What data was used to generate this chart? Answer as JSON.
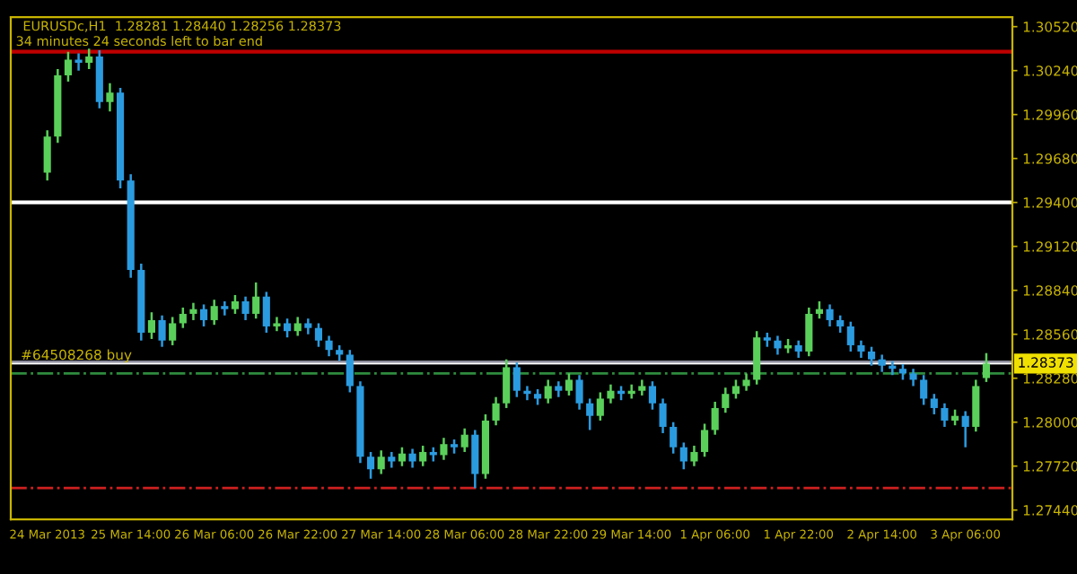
{
  "chart_data": {
    "type": "candlestick",
    "title": "EURUSDc,H1  1.28281 1.28440 1.28256 1.28373",
    "subtitle": "34 minutes 24 seconds left to bar end",
    "categories": [
      "24 Mar 2013",
      null,
      null,
      null,
      null,
      null,
      null,
      null,
      "25 Mar 14:00",
      null,
      null,
      null,
      null,
      null,
      null,
      null,
      "26 Mar 06:00",
      null,
      null,
      null,
      null,
      null,
      null,
      null,
      "26 Mar 22:00",
      null,
      null,
      null,
      null,
      null,
      null,
      null,
      "27 Mar 14:00",
      null,
      null,
      null,
      null,
      null,
      null,
      null,
      "28 Mar 06:00",
      null,
      null,
      null,
      null,
      null,
      null,
      null,
      "28 Mar 22:00",
      null,
      null,
      null,
      null,
      null,
      null,
      null,
      "29 Mar 14:00",
      null,
      null,
      null,
      null,
      null,
      null,
      null,
      "1 Apr 06:00",
      null,
      null,
      null,
      null,
      null,
      null,
      null,
      "1 Apr 22:00",
      null,
      null,
      null,
      null,
      null,
      null,
      null,
      "2 Apr 14:00",
      null,
      null,
      null,
      null,
      null,
      null,
      null,
      "3 Apr 06:00",
      null,
      null
    ],
    "ohlc": [
      [
        1.2959,
        1.2986,
        1.2954,
        1.2982
      ],
      [
        1.2982,
        1.3025,
        1.2978,
        1.3021
      ],
      [
        1.3021,
        1.3036,
        1.3017,
        1.3031
      ],
      [
        1.3031,
        1.3035,
        1.3024,
        1.3029
      ],
      [
        1.3029,
        1.3038,
        1.3025,
        1.3033
      ],
      [
        1.3033,
        1.3037,
        1.3,
        1.3004
      ],
      [
        1.3004,
        1.3016,
        1.2998,
        1.301
      ],
      [
        1.301,
        1.3013,
        1.2949,
        1.2954
      ],
      [
        1.2954,
        1.2958,
        1.2892,
        1.2897
      ],
      [
        1.2897,
        1.2901,
        1.2852,
        1.2857
      ],
      [
        1.2857,
        1.287,
        1.2853,
        1.2865
      ],
      [
        1.2865,
        1.2868,
        1.2848,
        1.2852
      ],
      [
        1.2852,
        1.2867,
        1.2849,
        1.2863
      ],
      [
        1.2863,
        1.2873,
        1.286,
        1.2869
      ],
      [
        1.2869,
        1.2876,
        1.2865,
        1.2872
      ],
      [
        1.2872,
        1.2875,
        1.2861,
        1.2865
      ],
      [
        1.2865,
        1.2878,
        1.2862,
        1.2874
      ],
      [
        1.2874,
        1.2877,
        1.2868,
        1.2872
      ],
      [
        1.2872,
        1.2881,
        1.2869,
        1.2877
      ],
      [
        1.2877,
        1.288,
        1.2865,
        1.2869
      ],
      [
        1.2869,
        1.2889,
        1.2866,
        1.288
      ],
      [
        1.288,
        1.2883,
        1.2857,
        1.2861
      ],
      [
        1.2861,
        1.2867,
        1.2858,
        1.2863
      ],
      [
        1.2863,
        1.2866,
        1.2854,
        1.2858
      ],
      [
        1.2858,
        1.2867,
        1.2855,
        1.2863
      ],
      [
        1.2863,
        1.2866,
        1.2856,
        1.286
      ],
      [
        1.286,
        1.2863,
        1.2848,
        1.2852
      ],
      [
        1.2852,
        1.2855,
        1.2842,
        1.2846
      ],
      [
        1.2846,
        1.2849,
        1.2839,
        1.2843
      ],
      [
        1.2843,
        1.2846,
        1.2819,
        1.2823
      ],
      [
        1.2823,
        1.2826,
        1.2774,
        1.2778
      ],
      [
        1.2778,
        1.2781,
        1.2764,
        1.277
      ],
      [
        1.277,
        1.2782,
        1.2767,
        1.2778
      ],
      [
        1.2778,
        1.2781,
        1.2771,
        1.2775
      ],
      [
        1.2775,
        1.2784,
        1.2772,
        1.278
      ],
      [
        1.278,
        1.2783,
        1.2771,
        1.2775
      ],
      [
        1.2775,
        1.2785,
        1.2772,
        1.2781
      ],
      [
        1.2781,
        1.2784,
        1.2775,
        1.2779
      ],
      [
        1.2779,
        1.279,
        1.2776,
        1.2786
      ],
      [
        1.2786,
        1.2789,
        1.278,
        1.2784
      ],
      [
        1.2784,
        1.2796,
        1.2781,
        1.2792
      ],
      [
        1.2792,
        1.2795,
        1.2758,
        1.2767
      ],
      [
        1.2767,
        1.2805,
        1.2764,
        1.2801
      ],
      [
        1.2801,
        1.2816,
        1.2798,
        1.2812
      ],
      [
        1.2812,
        1.284,
        1.2809,
        1.2835
      ],
      [
        1.2835,
        1.2838,
        1.2816,
        1.282
      ],
      [
        1.282,
        1.2823,
        1.2814,
        1.2818
      ],
      [
        1.2818,
        1.2821,
        1.2811,
        1.2815
      ],
      [
        1.2815,
        1.2827,
        1.2812,
        1.2823
      ],
      [
        1.2823,
        1.2826,
        1.2816,
        1.282
      ],
      [
        1.282,
        1.2831,
        1.2817,
        1.2827
      ],
      [
        1.2827,
        1.283,
        1.2808,
        1.2812
      ],
      [
        1.2812,
        1.2815,
        1.2795,
        1.2804
      ],
      [
        1.2804,
        1.2819,
        1.2801,
        1.2815
      ],
      [
        1.2815,
        1.2824,
        1.2812,
        1.282
      ],
      [
        1.282,
        1.2823,
        1.2814,
        1.2818
      ],
      [
        1.2818,
        1.2824,
        1.2815,
        1.282
      ],
      [
        1.282,
        1.2827,
        1.2817,
        1.2823
      ],
      [
        1.2823,
        1.2826,
        1.2808,
        1.2812
      ],
      [
        1.2812,
        1.2815,
        1.2793,
        1.2797
      ],
      [
        1.2797,
        1.28,
        1.278,
        1.2784
      ],
      [
        1.2784,
        1.2787,
        1.277,
        1.2775
      ],
      [
        1.2775,
        1.2785,
        1.2772,
        1.2781
      ],
      [
        1.2781,
        1.2799,
        1.2778,
        1.2795
      ],
      [
        1.2795,
        1.2813,
        1.2792,
        1.2809
      ],
      [
        1.2809,
        1.2822,
        1.2806,
        1.2818
      ],
      [
        1.2818,
        1.2827,
        1.2815,
        1.2823
      ],
      [
        1.2823,
        1.2831,
        1.282,
        1.2827
      ],
      [
        1.2827,
        1.2858,
        1.2824,
        1.2854
      ],
      [
        1.2854,
        1.2857,
        1.2848,
        1.2852
      ],
      [
        1.2852,
        1.2855,
        1.2843,
        1.2847
      ],
      [
        1.2847,
        1.2853,
        1.2844,
        1.2849
      ],
      [
        1.2849,
        1.2852,
        1.2841,
        1.2845
      ],
      [
        1.2845,
        1.2873,
        1.2842,
        1.2869
      ],
      [
        1.2869,
        1.2877,
        1.2866,
        1.2872
      ],
      [
        1.2872,
        1.2875,
        1.2861,
        1.2865
      ],
      [
        1.2865,
        1.2868,
        1.2857,
        1.2861
      ],
      [
        1.2861,
        1.2864,
        1.2845,
        1.2849
      ],
      [
        1.2849,
        1.2852,
        1.2841,
        1.2845
      ],
      [
        1.2845,
        1.2848,
        1.2836,
        1.284
      ],
      [
        1.284,
        1.2843,
        1.2832,
        1.2836
      ],
      [
        1.2836,
        1.2839,
        1.283,
        1.2834
      ],
      [
        1.2834,
        1.2837,
        1.2827,
        1.2831
      ],
      [
        1.2831,
        1.2834,
        1.2823,
        1.2827
      ],
      [
        1.2827,
        1.283,
        1.2811,
        1.2815
      ],
      [
        1.2815,
        1.2818,
        1.2805,
        1.2809
      ],
      [
        1.2809,
        1.2812,
        1.2797,
        1.2801
      ],
      [
        1.2801,
        1.2808,
        1.2798,
        1.2804
      ],
      [
        1.2804,
        1.2807,
        1.2784,
        1.2797
      ],
      [
        1.2797,
        1.2827,
        1.2794,
        1.2823
      ],
      [
        1.28281,
        1.2844,
        1.28256,
        1.28373
      ]
    ],
    "colors": [
      "#5ad05a",
      "#5ad05a",
      "#5ad05a",
      "#2b9be0",
      "#5ad05a",
      "#2b9be0",
      "#5ad05a",
      "#2b9be0",
      "#2b9be0",
      "#2b9be0",
      "#5ad05a",
      "#2b9be0",
      "#5ad05a",
      "#5ad05a",
      "#5ad05a",
      "#2b9be0",
      "#5ad05a",
      "#2b9be0",
      "#5ad05a",
      "#2b9be0",
      "#5ad05a",
      "#2b9be0",
      "#5ad05a",
      "#2b9be0",
      "#5ad05a",
      "#2b9be0",
      "#2b9be0",
      "#2b9be0",
      "#2b9be0",
      "#2b9be0",
      "#2b9be0",
      "#2b9be0",
      "#5ad05a",
      "#2b9be0",
      "#5ad05a",
      "#2b9be0",
      "#5ad05a",
      "#2b9be0",
      "#5ad05a",
      "#2b9be0",
      "#5ad05a",
      "#2b9be0",
      "#5ad05a",
      "#5ad05a",
      "#5ad05a",
      "#2b9be0",
      "#2b9be0",
      "#2b9be0",
      "#5ad05a",
      "#2b9be0",
      "#5ad05a",
      "#2b9be0",
      "#2b9be0",
      "#5ad05a",
      "#5ad05a",
      "#2b9be0",
      "#5ad05a",
      "#5ad05a",
      "#2b9be0",
      "#2b9be0",
      "#2b9be0",
      "#2b9be0",
      "#5ad05a",
      "#5ad05a",
      "#5ad05a",
      "#5ad05a",
      "#5ad05a",
      "#5ad05a",
      "#5ad05a",
      "#2b9be0",
      "#2b9be0",
      "#5ad05a",
      "#2b9be0",
      "#5ad05a",
      "#5ad05a",
      "#2b9be0",
      "#2b9be0",
      "#2b9be0",
      "#2b9be0",
      "#2b9be0",
      "#2b9be0",
      "#2b9be0",
      "#2b9be0",
      "#2b9be0",
      "#2b9be0",
      "#2b9be0",
      "#2b9be0",
      "#5ad05a",
      "#2b9be0",
      "#5ad05a",
      "#5ad05a"
    ],
    "ylim": [
      1.2738,
      1.3058
    ],
    "yticks": [
      {
        "value": 1.2744,
        "label": "1.27440"
      },
      {
        "value": 1.2772,
        "label": "1.27720"
      },
      {
        "value": 1.28,
        "label": "1.28000"
      },
      {
        "value": 1.2828,
        "label": "1.28280"
      },
      {
        "value": 1.2856,
        "label": "1.28560"
      },
      {
        "value": 1.2884,
        "label": "1.28840"
      },
      {
        "value": 1.2912,
        "label": "1.29120"
      },
      {
        "value": 1.294,
        "label": "1.29400"
      },
      {
        "value": 1.2968,
        "label": "1.29680"
      },
      {
        "value": 1.2996,
        "label": "1.29960"
      },
      {
        "value": 1.3024,
        "label": "1.30240"
      },
      {
        "value": 1.3052,
        "label": "1.30520"
      }
    ],
    "ref_lines": [
      {
        "axis": "y",
        "value": 1.3036,
        "color": "#c00000",
        "line_style": "solid"
      },
      {
        "axis": "y",
        "value": 1.294,
        "color": "#ffffff",
        "line_style": "solid"
      },
      {
        "axis": "y",
        "value": 1.2838,
        "color": "#8c8c9c",
        "line_style": "solid",
        "label": "#64508268 buy"
      },
      {
        "axis": "y",
        "value": 1.2831,
        "color": "#2e8b3e",
        "line_style": "dashdot"
      },
      {
        "axis": "y",
        "value": 1.2758,
        "color": "#d02020",
        "line_style": "dashdot"
      },
      {
        "axis": "y",
        "value": 1.28373,
        "color": "#ffffff",
        "line_style": "solid",
        "label": "1.28373"
      }
    ]
  }
}
